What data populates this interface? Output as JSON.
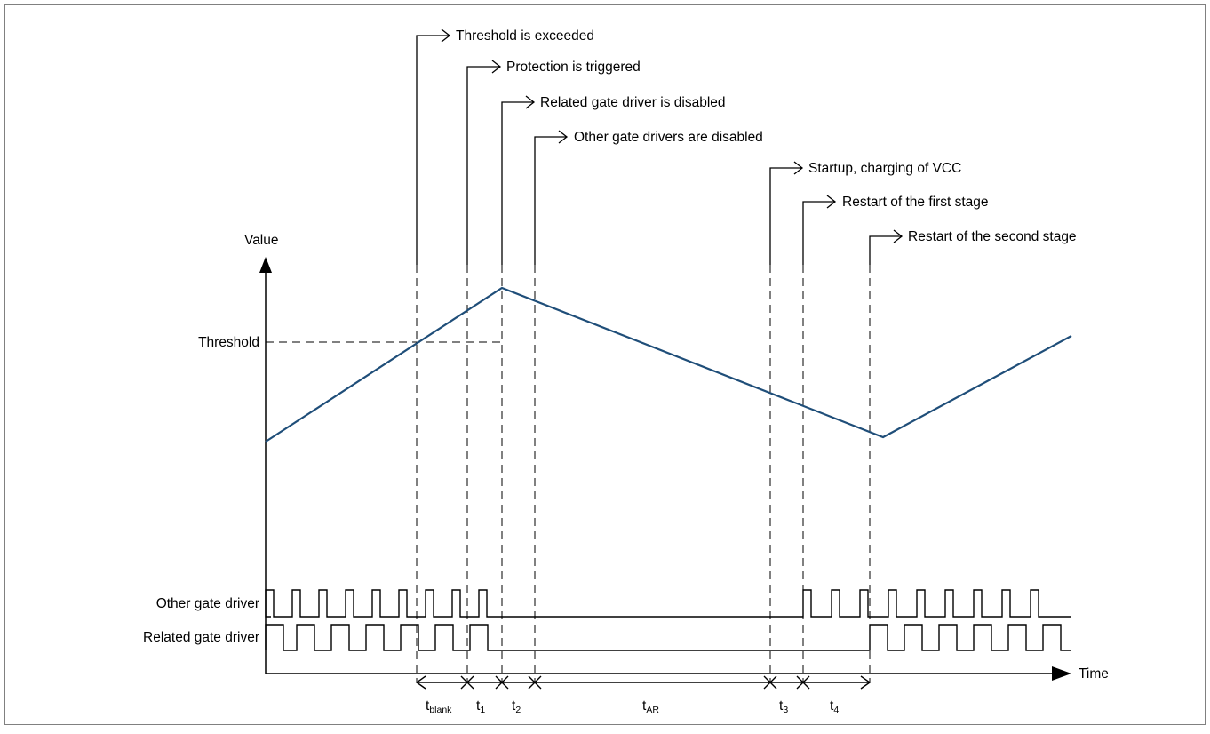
{
  "diagram": {
    "y_axis_label": "Value",
    "x_axis_label": "Time",
    "threshold_label": "Threshold",
    "signals": {
      "other_gate_driver": "Other gate driver",
      "related_gate_driver": "Related gate driver"
    },
    "events": [
      {
        "id": "threshold-exceeded",
        "text": "Threshold is exceeded"
      },
      {
        "id": "protection-triggered",
        "text": "Protection is triggered"
      },
      {
        "id": "related-driver-disabled",
        "text": "Related gate driver is disabled"
      },
      {
        "id": "other-drivers-disabled",
        "text": "Other gate drivers are disabled"
      },
      {
        "id": "startup-charging",
        "text": "Startup, charging of VCC"
      },
      {
        "id": "restart-first-stage",
        "text": "Restart of the first stage"
      },
      {
        "id": "restart-second-stage",
        "text": "Restart of the second stage"
      }
    ],
    "intervals": [
      {
        "id": "t-blank",
        "base": "t",
        "sub": "blank"
      },
      {
        "id": "t1",
        "base": "t",
        "sub": "1"
      },
      {
        "id": "t2",
        "base": "t",
        "sub": "2"
      },
      {
        "id": "t-ar",
        "base": "t",
        "sub": "AR"
      },
      {
        "id": "t3",
        "base": "t",
        "sub": "3"
      },
      {
        "id": "t4",
        "base": "t",
        "sub": "4"
      }
    ],
    "colors": {
      "value_curve": "#1f4e79",
      "lines": "#000000",
      "frame": "#808080"
    }
  }
}
